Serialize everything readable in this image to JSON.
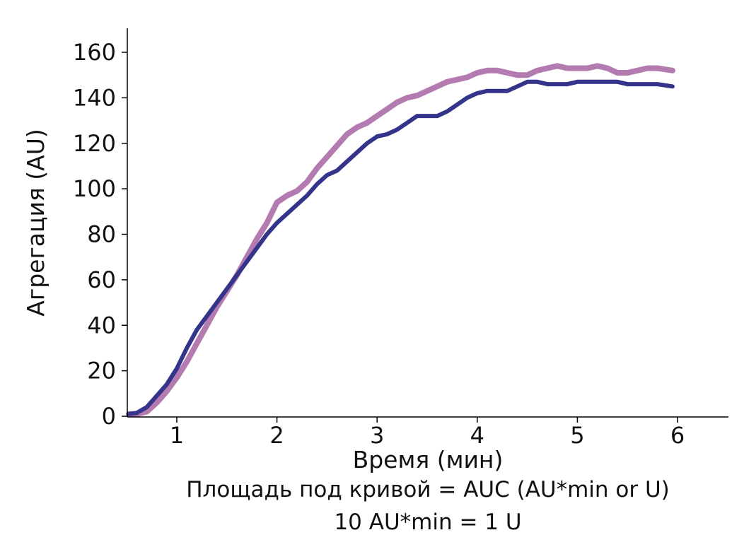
{
  "chart_data": {
    "type": "line",
    "title": "",
    "xlabel": "Время (мин)",
    "ylabel": "Агрегация (AU)",
    "xlim": [
      0.5,
      6.5
    ],
    "ylim": [
      0,
      170
    ],
    "xticks": [
      1,
      2,
      3,
      4,
      5,
      6
    ],
    "yticks": [
      0,
      20,
      40,
      60,
      80,
      100,
      120,
      140,
      160
    ],
    "grid": false,
    "legend": "none",
    "series": [
      {
        "color": "#33348a",
        "points": [
          [
            0.52,
            1
          ],
          [
            0.6,
            1.5
          ],
          [
            0.7,
            4
          ],
          [
            0.8,
            9
          ],
          [
            0.9,
            14
          ],
          [
            1.0,
            21
          ],
          [
            1.1,
            30
          ],
          [
            1.2,
            38
          ],
          [
            1.3,
            44
          ],
          [
            1.4,
            50
          ],
          [
            1.5,
            56
          ],
          [
            1.6,
            62
          ],
          [
            1.7,
            68
          ],
          [
            1.8,
            74
          ],
          [
            1.9,
            80
          ],
          [
            2.0,
            85
          ],
          [
            2.1,
            89
          ],
          [
            2.2,
            93
          ],
          [
            2.3,
            97
          ],
          [
            2.4,
            102
          ],
          [
            2.5,
            106
          ],
          [
            2.6,
            108
          ],
          [
            2.7,
            112
          ],
          [
            2.8,
            116
          ],
          [
            2.9,
            120
          ],
          [
            3.0,
            123
          ],
          [
            3.1,
            124
          ],
          [
            3.2,
            126
          ],
          [
            3.3,
            129
          ],
          [
            3.4,
            132
          ],
          [
            3.5,
            132
          ],
          [
            3.6,
            132
          ],
          [
            3.7,
            134
          ],
          [
            3.8,
            137
          ],
          [
            3.9,
            140
          ],
          [
            4.0,
            142
          ],
          [
            4.1,
            143
          ],
          [
            4.2,
            143
          ],
          [
            4.3,
            143
          ],
          [
            4.4,
            145
          ],
          [
            4.5,
            147
          ],
          [
            4.6,
            147
          ],
          [
            4.7,
            146
          ],
          [
            4.8,
            146
          ],
          [
            4.9,
            146
          ],
          [
            5.0,
            147
          ],
          [
            5.1,
            147
          ],
          [
            5.2,
            147
          ],
          [
            5.3,
            147
          ],
          [
            5.4,
            147
          ],
          [
            5.5,
            146
          ],
          [
            5.6,
            146
          ],
          [
            5.7,
            146
          ],
          [
            5.8,
            146
          ],
          [
            5.95,
            145
          ]
        ]
      },
      {
        "color": "#b47bb0",
        "points": [
          [
            0.52,
            1
          ],
          [
            0.6,
            1
          ],
          [
            0.7,
            2
          ],
          [
            0.8,
            6
          ],
          [
            0.9,
            11
          ],
          [
            1.0,
            17
          ],
          [
            1.1,
            24
          ],
          [
            1.2,
            32
          ],
          [
            1.3,
            40
          ],
          [
            1.4,
            48
          ],
          [
            1.5,
            55
          ],
          [
            1.6,
            62
          ],
          [
            1.7,
            70
          ],
          [
            1.8,
            78
          ],
          [
            1.9,
            85
          ],
          [
            2.0,
            94
          ],
          [
            2.1,
            97
          ],
          [
            2.2,
            99
          ],
          [
            2.3,
            103
          ],
          [
            2.4,
            109
          ],
          [
            2.5,
            114
          ],
          [
            2.6,
            119
          ],
          [
            2.7,
            124
          ],
          [
            2.8,
            127
          ],
          [
            2.9,
            129
          ],
          [
            3.0,
            132
          ],
          [
            3.1,
            135
          ],
          [
            3.2,
            138
          ],
          [
            3.3,
            140
          ],
          [
            3.4,
            141
          ],
          [
            3.5,
            143
          ],
          [
            3.6,
            145
          ],
          [
            3.7,
            147
          ],
          [
            3.8,
            148
          ],
          [
            3.9,
            149
          ],
          [
            4.0,
            151
          ],
          [
            4.1,
            152
          ],
          [
            4.2,
            152
          ],
          [
            4.3,
            151
          ],
          [
            4.4,
            150
          ],
          [
            4.5,
            150
          ],
          [
            4.6,
            152
          ],
          [
            4.7,
            153
          ],
          [
            4.8,
            154
          ],
          [
            4.9,
            153
          ],
          [
            5.0,
            153
          ],
          [
            5.1,
            153
          ],
          [
            5.2,
            154
          ],
          [
            5.3,
            153
          ],
          [
            5.4,
            151
          ],
          [
            5.5,
            151
          ],
          [
            5.6,
            152
          ],
          [
            5.7,
            153
          ],
          [
            5.8,
            153
          ],
          [
            5.95,
            152
          ]
        ]
      }
    ],
    "annotations": [
      "Площадь под кривой = AUC (AU*min or U)",
      "10 AU*min = 1 U"
    ]
  }
}
